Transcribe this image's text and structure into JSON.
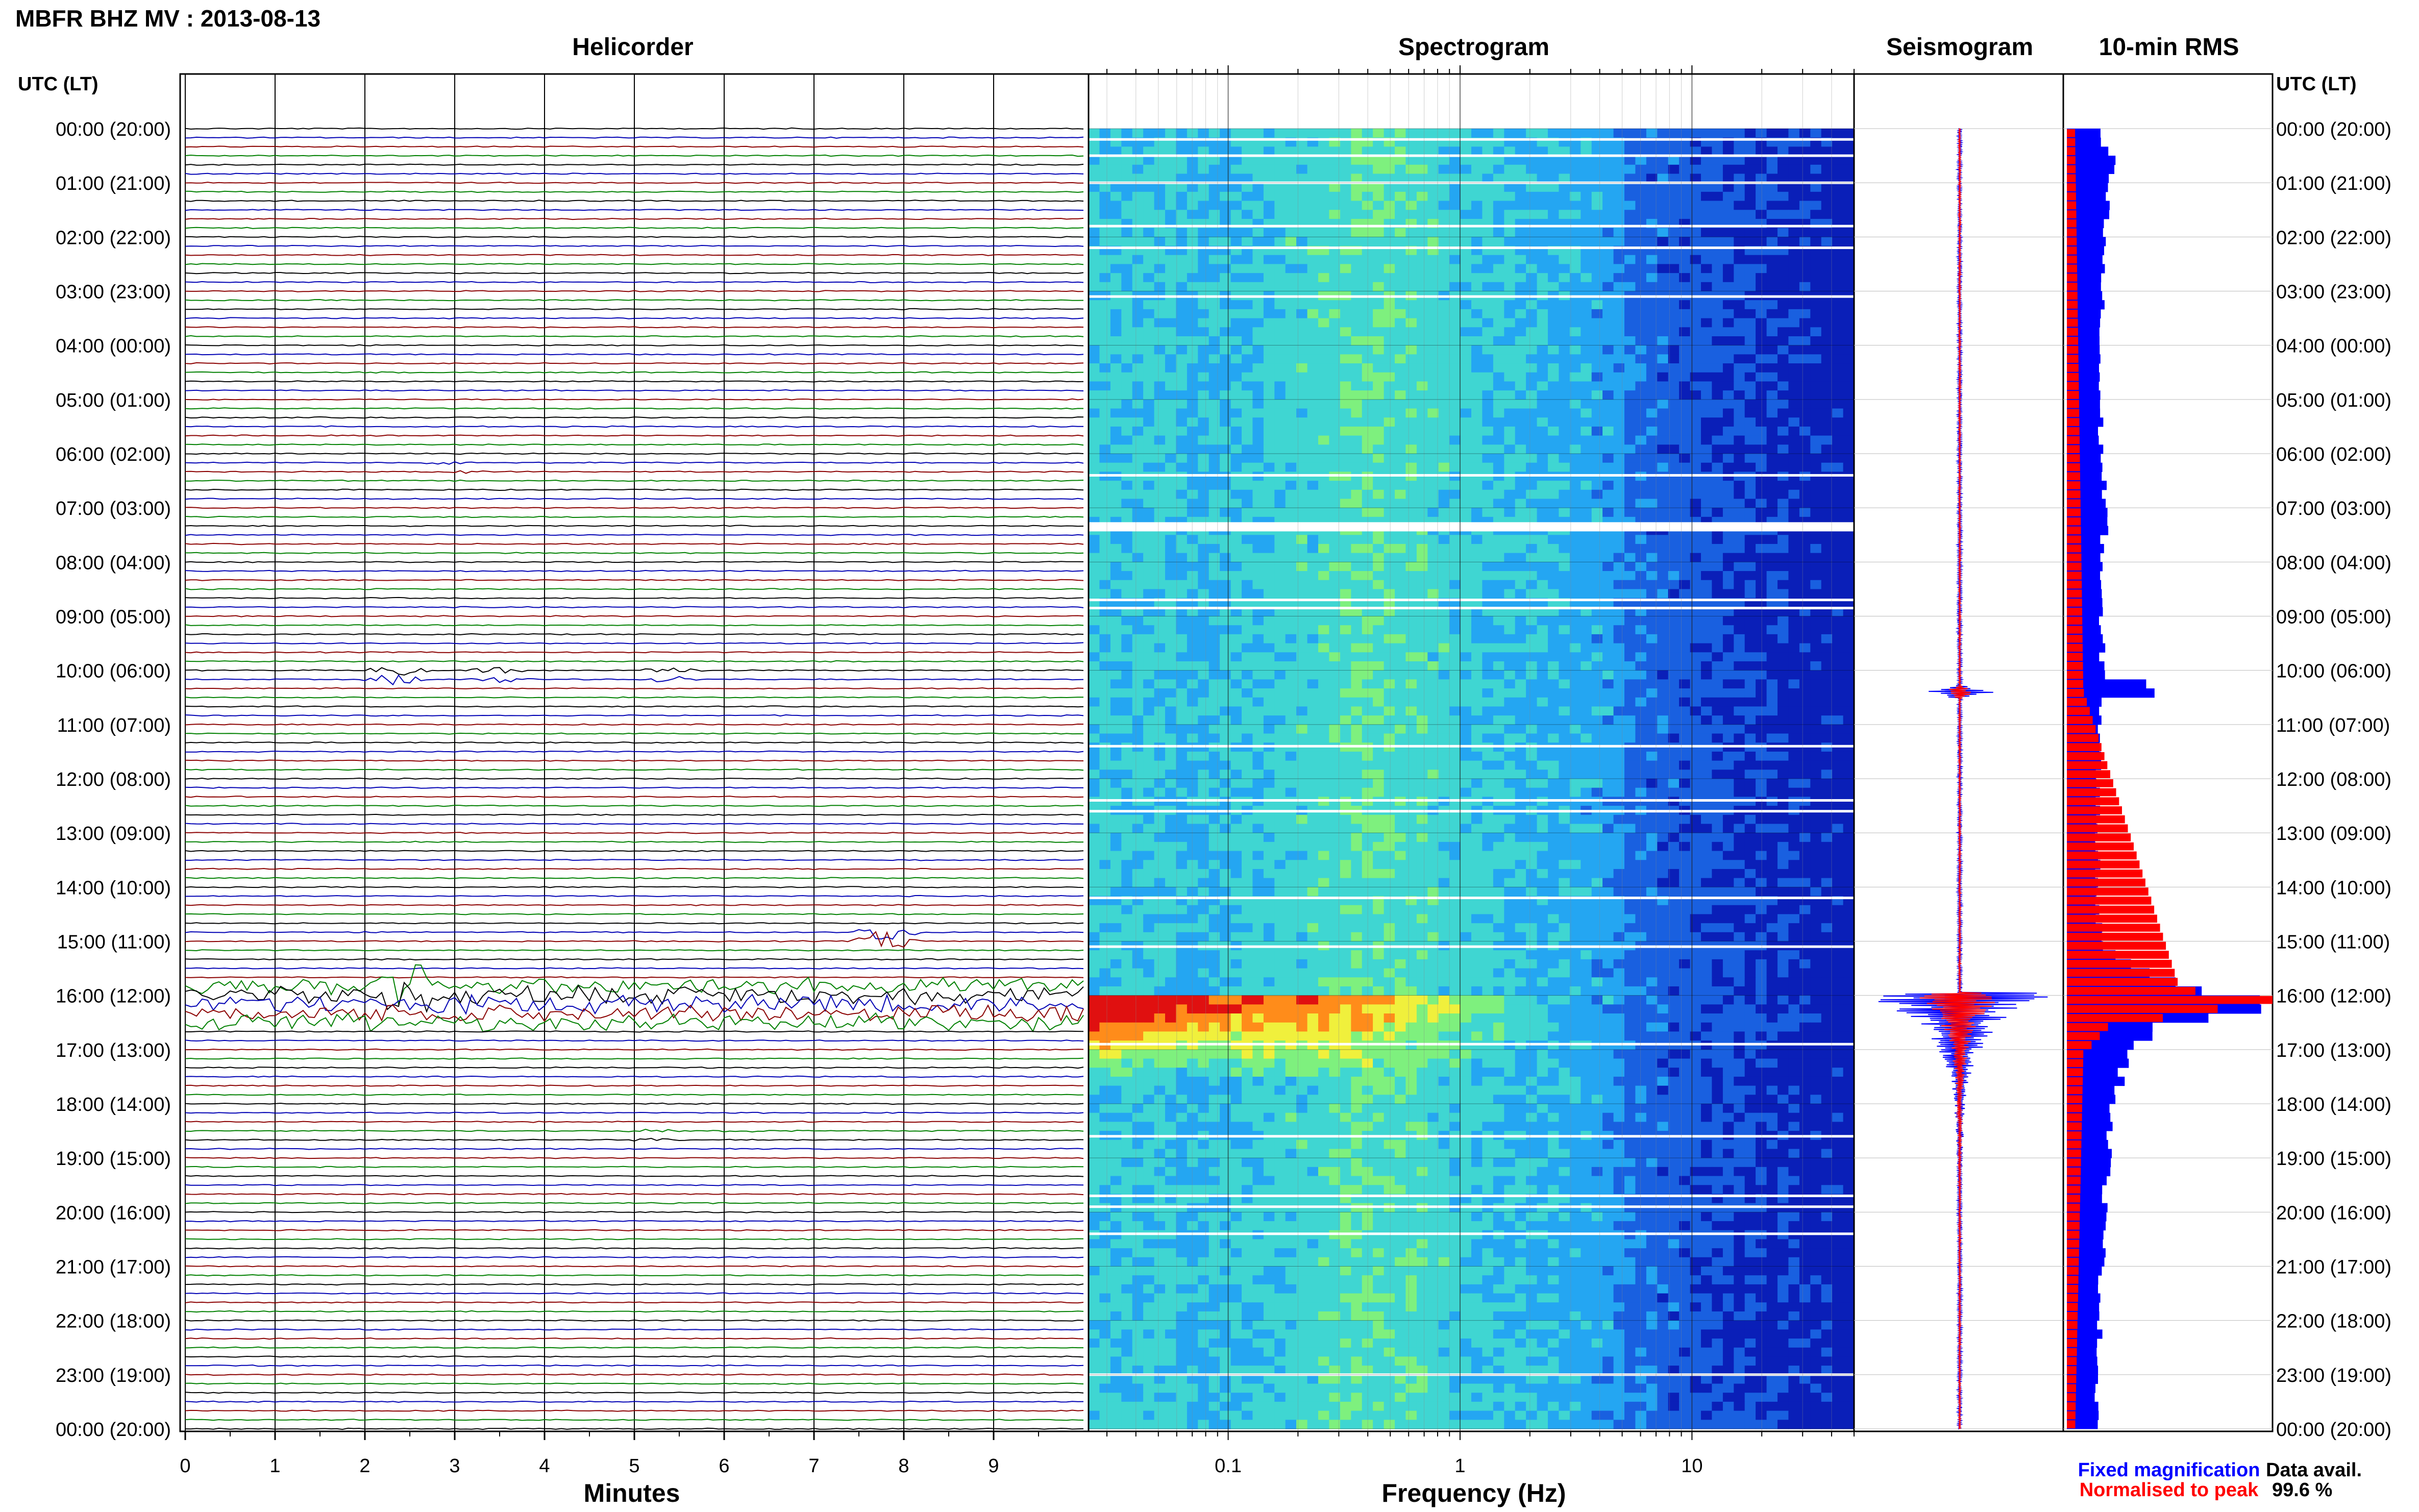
{
  "figure": {
    "title": "MBFR BHZ MV : 2013-08-13",
    "utc_label_left": "UTC (LT)",
    "utc_label_right": "UTC (LT)",
    "data_avail_label": "Data avail.",
    "data_avail_value": "99.6 %"
  },
  "colors": {
    "trace_cycle": [
      "#000000",
      "#0000b4",
      "#8b0000",
      "#008000"
    ],
    "fixed": "#0000ff",
    "normalised": "#ff0000"
  },
  "chart_data": [
    {
      "type": "line",
      "title": "Helicorder",
      "xlabel": "Minutes",
      "ylabel": "UTC (LT)",
      "xlim": [
        0,
        10
      ],
      "xticks": [
        "0",
        "1",
        "2",
        "3",
        "4",
        "5",
        "6",
        "7",
        "8",
        "9"
      ],
      "row_minutes": 10,
      "row_count": 144,
      "time_labels": [
        "00:00 (20:00)",
        "01:00 (21:00)",
        "02:00 (22:00)",
        "03:00 (23:00)",
        "04:00 (00:00)",
        "05:00 (01:00)",
        "06:00 (02:00)",
        "07:00 (03:00)",
        "08:00 (04:00)",
        "09:00 (05:00)",
        "10:00 (06:00)",
        "11:00 (07:00)",
        "12:00 (08:00)",
        "13:00 (09:00)",
        "14:00 (10:00)",
        "15:00 (11:00)",
        "16:00 (12:00)",
        "17:00 (13:00)",
        "18:00 (14:00)",
        "19:00 (15:00)",
        "20:00 (16:00)",
        "21:00 (17:00)",
        "22:00 (18:00)",
        "23:00 (19:00)",
        "00:00 (20:00)"
      ],
      "events": [
        {
          "hour": 10.1,
          "minute": 2.35,
          "amp": 4
        },
        {
          "hour": 10.1,
          "minute": 3.5,
          "amp": 2
        },
        {
          "hour": 10.1,
          "minute": 5.4,
          "amp": 2.5
        },
        {
          "hour": 14.9,
          "minute": 7.8,
          "amp": 8
        },
        {
          "hour": 15.9,
          "minute": 2.5,
          "amp": 12
        },
        {
          "hour": 6.3,
          "minute": 3.0,
          "amp": 1.2
        },
        {
          "hour": 18.5,
          "minute": 6.2,
          "amp": 1.2
        },
        {
          "hour": 18.6,
          "minute": 5.2,
          "amp": 1
        }
      ]
    },
    {
      "type": "heatmap",
      "title": "Spectrogram",
      "xlabel": "Frequency (Hz)",
      "xscale": "log",
      "xlim": [
        0.025,
        50
      ],
      "xticks": [
        "0.1",
        "1",
        "10"
      ],
      "ylim": [
        0,
        24
      ],
      "colormap": [
        "#0a1fb8",
        "#1960e0",
        "#24a6f2",
        "#3fd6d2",
        "#7ef07e",
        "#f0f03c",
        "#ff8c1a",
        "#e01010"
      ],
      "gaps_hours": [
        0.2,
        0.5,
        1.0,
        1.8,
        2.2,
        3.1,
        6.4,
        7.35,
        8.7,
        8.85,
        11.4,
        12.4,
        12.6,
        14.2,
        15.1,
        16.9,
        18.6,
        19.7,
        19.9,
        20.4,
        23.0
      ],
      "high_energy_window_hours": [
        15.95,
        17.5
      ]
    },
    {
      "type": "line",
      "title": "Seismogram",
      "series": [
        {
          "name": "Fixed magnification",
          "color": "#0000ff"
        },
        {
          "name": "Normalised to peak",
          "color": "#ff0000"
        }
      ],
      "peak_hours": [
        10.4,
        16.0
      ],
      "xlim": [
        -1,
        1
      ]
    },
    {
      "type": "bar",
      "title": "10-min RMS",
      "orientation": "horizontal",
      "bin_minutes": 10,
      "series": [
        {
          "name": "Fixed magnification",
          "color": "#0000ff",
          "values_by_hour": [
            {
              "h": 0,
              "v": 0.15
            },
            {
              "h": 0.5,
              "v": 0.22
            },
            {
              "h": 1,
              "v": 0.2
            },
            {
              "h": 2,
              "v": 0.18
            },
            {
              "h": 3,
              "v": 0.17
            },
            {
              "h": 4,
              "v": 0.16
            },
            {
              "h": 5,
              "v": 0.16
            },
            {
              "h": 6,
              "v": 0.17
            },
            {
              "h": 7,
              "v": 0.19
            },
            {
              "h": 8,
              "v": 0.17
            },
            {
              "h": 9,
              "v": 0.16
            },
            {
              "h": 10,
              "v": 0.18
            },
            {
              "h": 10.3,
              "v": 0.52
            },
            {
              "h": 10.5,
              "v": 0.17
            },
            {
              "h": 11,
              "v": 0.16
            },
            {
              "h": 12,
              "v": 0.15
            },
            {
              "h": 13,
              "v": 0.15
            },
            {
              "h": 14,
              "v": 0.15
            },
            {
              "h": 15,
              "v": 0.16
            },
            {
              "h": 15.8,
              "v": 0.6
            },
            {
              "h": 16.0,
              "v": 1.0
            },
            {
              "h": 16.2,
              "v": 1.0
            },
            {
              "h": 16.5,
              "v": 0.45
            },
            {
              "h": 17,
              "v": 0.3
            },
            {
              "h": 18,
              "v": 0.22
            },
            {
              "h": 19,
              "v": 0.2
            },
            {
              "h": 20,
              "v": 0.18
            },
            {
              "h": 21,
              "v": 0.17
            },
            {
              "h": 22,
              "v": 0.16
            },
            {
              "h": 23,
              "v": 0.15
            },
            {
              "h": 24,
              "v": 0.15
            }
          ]
        },
        {
          "name": "Normalised to peak",
          "color": "#ff0000",
          "values_by_hour": [
            {
              "h": 0,
              "v": 0.04
            },
            {
              "h": 10.3,
              "v": 0.08
            },
            {
              "h": 15.8,
              "v": 0.55
            },
            {
              "h": 16.0,
              "v": 1.0
            },
            {
              "h": 16.5,
              "v": 0.2
            },
            {
              "h": 17,
              "v": 0.08
            },
            {
              "h": 24,
              "v": 0.04
            }
          ]
        }
      ]
    }
  ]
}
